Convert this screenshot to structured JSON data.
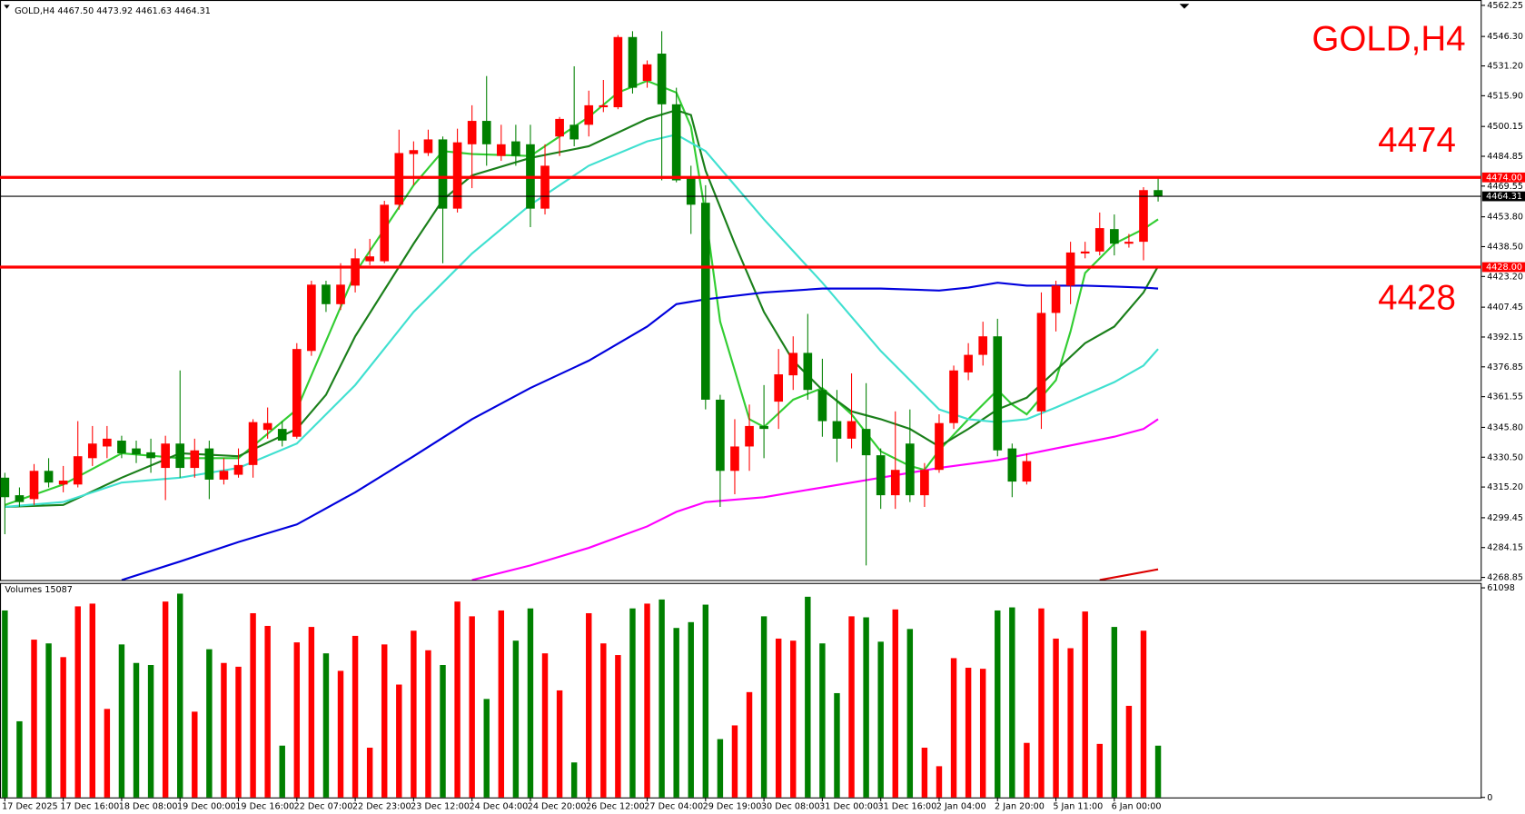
{
  "chart_data": {
    "type": "candlestick",
    "title": "GOLD,H4",
    "header": "GOLD,H4  4467.50 4473.92 4461.63 4464.31",
    "up_color": "#ff0000",
    "down_color": "#008000",
    "categories": [
      "17 Dec 2025",
      null,
      null,
      null,
      "17 Dec 16:00",
      null,
      null,
      null,
      "18 Dec 08:00",
      null,
      null,
      null,
      "19 Dec 00:00",
      null,
      null,
      null,
      "19 Dec 16:00",
      null,
      null,
      null,
      "22 Dec 07:00",
      null,
      null,
      null,
      "22 Dec 23:00",
      null,
      null,
      null,
      "23 Dec 12:00",
      null,
      null,
      null,
      "24 Dec 04:00",
      null,
      null,
      null,
      "24 Dec 20:00",
      null,
      null,
      null,
      "26 Dec 12:00",
      null,
      null,
      null,
      "27 Dec 04:00",
      null,
      null,
      null,
      "29 Dec 19:00",
      null,
      null,
      null,
      "30 Dec 08:00",
      null,
      null,
      null,
      "31 Dec 00:00",
      null,
      null,
      null,
      "31 Dec 16:00",
      null,
      null,
      null,
      "2 Jan 04:00",
      null,
      null,
      null,
      "2 Jan 20:00",
      null,
      null,
      null,
      "5 Jan 11:00",
      null,
      null,
      null,
      "6 Jan 00:00",
      null,
      null,
      null
    ],
    "open": [
      4320,
      4311,
      4309,
      4323.5,
      4316.5,
      4316.5,
      4330,
      4336,
      4339,
      4335,
      4333,
      4325,
      4337.5,
      4325,
      4335,
      4319,
      4321.5,
      4326.5,
      4344.5,
      4345,
      4341,
      4385,
      4419,
      4409,
      4418.5,
      4431,
      4431,
      4460,
      4486,
      4486.5,
      4493.5,
      4458,
      4491,
      4503,
      4485,
      4492.5,
      4491,
      4458,
      4495,
      4501,
      4501,
      4510,
      4510,
      4546,
      4523.5,
      4537.5,
      4511.5,
      4474,
      4461,
      4360,
      4323.5,
      4336,
      4346.5,
      4359,
      4372.5,
      4384,
      4365,
      4349,
      4340,
      4345,
      4331.5,
      4311,
      4337.5,
      4311,
      4324,
      4348,
      4374,
      4383,
      4392.5,
      4335,
      4318,
      4354,
      4404.5,
      4418.5,
      4435,
      4436,
      4447.5,
      4440,
      4441,
      4467.5
    ],
    "high": [
      4322.5,
      4315,
      4327,
      4330,
      4326,
      4349,
      4346.5,
      4346.5,
      4341.5,
      4339,
      4340,
      4341.5,
      4375,
      4340,
      4339,
      4330,
      4335,
      4350,
      4356,
      4349,
      4389,
      4421,
      4421,
      4430,
      4437.5,
      4442.5,
      4462,
      4498.5,
      4492.5,
      4498.5,
      4495,
      4499,
      4511,
      4526,
      4501,
      4501,
      4501,
      4491,
      4505,
      4531,
      4518.5,
      4524,
      4547,
      4549,
      4534,
      4549,
      4520,
      4480,
      4470,
      4362.5,
      4350,
      4357.5,
      4367.5,
      4386,
      4392.5,
      4404,
      4381,
      4365,
      4373.5,
      4368.5,
      4335,
      4354,
      4355,
      4327.5,
      4352.5,
      4377.5,
      4389,
      4400,
      4401.5,
      4337.5,
      4332.5,
      4415,
      4421,
      4441,
      4441,
      4456,
      4455,
      4445,
      4469,
      4473.92
    ],
    "low": [
      4291,
      4305,
      4306,
      4315,
      4312.5,
      4315,
      4326,
      4330,
      4330,
      4327.5,
      4322.5,
      4308.5,
      4320,
      4320,
      4309,
      4316.5,
      4320,
      4320,
      4340,
      4336,
      4340,
      4382.5,
      4405,
      4406,
      4415,
      4429,
      4430,
      4457.5,
      4470,
      4485,
      4430,
      4456,
      4468.5,
      4480,
      4482.5,
      4480,
      4448.5,
      4455,
      4485,
      4490,
      4495,
      4507.5,
      4509,
      4517,
      4520,
      4472.5,
      4471.5,
      4445,
      4355,
      4305,
      4311.5,
      4323.5,
      4330,
      4345,
      4365,
      4360,
      4341,
      4328,
      4335,
      4275,
      4304,
      4304,
      4307.5,
      4305,
      4322.5,
      4345,
      4370,
      4377.5,
      4331,
      4310,
      4316.5,
      4345,
      4395,
      4409,
      4432.5,
      4434,
      4434,
      4438,
      4431.5,
      4461.63
    ],
    "close": [
      4310,
      4307.5,
      4323.5,
      4317.5,
      4318.5,
      4331,
      4337.5,
      4340,
      4332.5,
      4332,
      4330,
      4337.5,
      4325,
      4334,
      4319,
      4323.5,
      4326.5,
      4348.5,
      4348,
      4339,
      4386,
      4419,
      4409,
      4419,
      4432.5,
      4433.5,
      4460,
      4486.5,
      4488,
      4493.5,
      4458,
      4492,
      4503,
      4491,
      4491,
      4485,
      4458,
      4480,
      4504,
      4493.5,
      4511,
      4511,
      4546,
      4520,
      4532,
      4511.5,
      4472.5,
      4460,
      4360,
      4323.5,
      4336,
      4346.5,
      4345,
      4373,
      4384,
      4365,
      4349,
      4340,
      4349,
      4331.5,
      4311,
      4324,
      4311,
      4324,
      4348,
      4375,
      4383,
      4392.5,
      4334,
      4318,
      4328.5,
      4404.5,
      4418.5,
      4435.5,
      4436,
      4448,
      4440,
      4441,
      4467.5,
      4464.31
    ],
    "ylim": [
      4267.5,
      4565
    ],
    "yticks": [
      {
        "value": 4562.25,
        "label": "4562.25"
      },
      {
        "value": 4546.3,
        "label": "4546.30"
      },
      {
        "value": 4531.2,
        "label": "4531.20"
      },
      {
        "value": 4515.9,
        "label": "4515.90"
      },
      {
        "value": 4500.15,
        "label": "4500.15"
      },
      {
        "value": 4484.85,
        "label": "4484.85"
      },
      {
        "value": 4469.55,
        "label": "4469.55"
      },
      {
        "value": 4453.8,
        "label": "4453.80"
      },
      {
        "value": 4438.5,
        "label": "4438.50"
      },
      {
        "value": 4423.2,
        "label": "4423.20"
      },
      {
        "value": 4407.45,
        "label": "4407.45"
      },
      {
        "value": 4392.15,
        "label": "4392.15"
      },
      {
        "value": 4376.85,
        "label": "4376.85"
      },
      {
        "value": 4361.55,
        "label": "4361.55"
      },
      {
        "value": 4345.8,
        "label": "4345.80"
      },
      {
        "value": 4330.5,
        "label": "4330.50"
      },
      {
        "value": 4315.2,
        "label": "4315.20"
      },
      {
        "value": 4299.45,
        "label": "4299.45"
      },
      {
        "value": 4284.15,
        "label": "4284.15"
      },
      {
        "value": 4268.85,
        "label": "4268.85"
      }
    ],
    "series": [
      {
        "color": "#32cd32",
        "x": [
          0,
          4,
          8,
          12,
          16,
          20,
          24,
          28,
          30,
          32,
          36,
          40,
          42,
          44,
          46,
          47,
          48,
          49,
          51,
          52,
          54,
          56,
          58,
          60,
          62,
          63,
          64,
          66,
          68,
          69,
          70,
          72,
          73,
          74,
          76,
          78,
          79
        ],
        "values": [
          4306,
          4316.5,
          4332.5,
          4330,
          4330,
          4355,
          4425,
          4470,
          4487.5,
          4486,
          4485,
          4505,
          4517.5,
          4523.5,
          4517.5,
          4500,
          4455,
          4400,
          4350,
          4346,
          4360,
          4366,
          4352.5,
          4333.5,
          4326,
          4324,
          4334,
          4350,
          4365,
          4357.5,
          4352.5,
          4370,
          4395,
          4425,
          4440,
          4447.5,
          4452.5
        ]
      },
      {
        "color": "#1a7f1a",
        "x": [
          0,
          4,
          8,
          12,
          16,
          20,
          22,
          24,
          28,
          30,
          32,
          36,
          40,
          44,
          46,
          47,
          48,
          50,
          52,
          54,
          56,
          58,
          60,
          62,
          64,
          66,
          68,
          70,
          72,
          74,
          76,
          78,
          79
        ],
        "values": [
          4305,
          4306,
          4320,
          4332.5,
          4331,
          4345,
          4362.5,
          4392.5,
          4440,
          4462.5,
          4475,
          4484,
          4490,
          4504,
          4508.5,
          4506,
          4477.5,
          4440,
          4405,
          4380,
          4365,
          4354,
          4350,
          4345,
          4336,
          4345,
          4355,
          4361,
          4375,
          4389,
          4397.5,
          4415,
          4428.5
        ]
      },
      {
        "color": "#40e0d0",
        "x": [
          0,
          4,
          8,
          12,
          16,
          20,
          24,
          28,
          32,
          36,
          40,
          44,
          46,
          48,
          50,
          52,
          56,
          60,
          64,
          66,
          68,
          70,
          72,
          74,
          76,
          78,
          79
        ],
        "values": [
          4305,
          4307.5,
          4317.5,
          4320,
          4325,
          4337.5,
          4367.5,
          4405,
          4435,
          4460,
          4480,
          4492.5,
          4496,
          4487.5,
          4470,
          4452.5,
          4420,
          4385,
          4355,
          4350,
          4348.5,
          4350,
          4356,
          4362.5,
          4369,
          4377.5,
          4386
        ]
      },
      {
        "color": "#0000dd",
        "x": [
          8,
          12,
          16,
          20,
          24,
          28,
          32,
          36,
          40,
          44,
          46,
          48,
          52,
          56,
          60,
          64,
          66,
          68,
          70,
          72,
          74,
          76,
          78,
          79
        ],
        "values": [
          4267.5,
          4277,
          4287,
          4296,
          4312.5,
          4331,
          4350,
          4366,
          4380,
          4397.5,
          4409,
          4411.5,
          4415,
          4417,
          4417,
          4416,
          4417.5,
          4420,
          4418.5,
          4418.5,
          4418.5,
          4418,
          4417.5,
          4417
        ]
      },
      {
        "color": "#ff00ff",
        "x": [
          32,
          36,
          40,
          44,
          46,
          48,
          52,
          56,
          60,
          64,
          68,
          72,
          76,
          78,
          79
        ],
        "values": [
          4267.5,
          4275,
          4284,
          4295,
          4302.5,
          4307.5,
          4310,
          4315,
          4320,
          4325,
          4329,
          4335,
          4341,
          4345,
          4350
        ]
      },
      {
        "color": "#dd0000",
        "x": [
          75,
          79
        ],
        "values": [
          4267.5,
          4273
        ]
      }
    ],
    "levels": [
      {
        "value": 4474,
        "label": "4474.00",
        "color": "#ff0000",
        "width": 3
      },
      {
        "value": 4428,
        "label": "4428.00",
        "color": "#ff0000",
        "width": 3
      },
      {
        "value": 4464.31,
        "label": "4464.31",
        "color": "#000000",
        "width": 1
      }
    ],
    "annotations": [
      {
        "text": "4474",
        "value": 4474
      },
      {
        "text": "4428",
        "value": 4428
      }
    ],
    "volume": {
      "title": "Volumes 15087",
      "values": [
        54500,
        22200,
        46000,
        44900,
        40900,
        55700,
        56500,
        25800,
        44600,
        39200,
        38600,
        57100,
        59400,
        25000,
        43200,
        39200,
        38100,
        53700,
        50000,
        15100,
        45200,
        49700,
        42000,
        36900,
        47100,
        14500,
        44600,
        32900,
        48600,
        42900,
        38600,
        57100,
        52800,
        28700,
        54500,
        45700,
        55100,
        42000,
        31200,
        10200,
        53700,
        44900,
        41500,
        55100,
        56500,
        57700,
        49400,
        51100,
        56200,
        17000,
        21000,
        30700,
        52800,
        46300,
        45700,
        58500,
        44900,
        30400,
        52800,
        52500,
        45400,
        54800,
        49100,
        14500,
        9100,
        40600,
        37800,
        37500,
        54500,
        55400,
        15900,
        55100,
        46300,
        43500,
        54200,
        15600,
        49700,
        26700,
        48600,
        15087
      ],
      "ylim": [
        0,
        61098
      ],
      "yticks": [
        0,
        61098
      ]
    }
  }
}
